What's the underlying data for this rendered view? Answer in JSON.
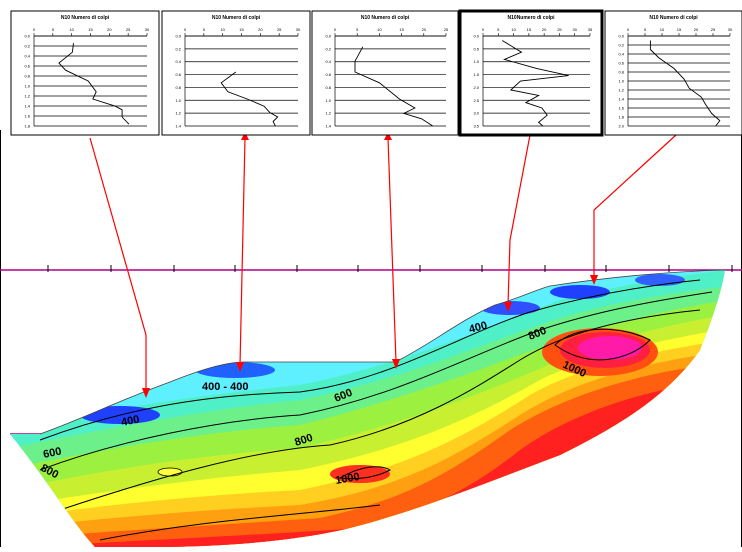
{
  "panels": [
    {
      "title": "N10 Numero di colpi",
      "x_ticks": [
        "0",
        "5",
        "10",
        "15",
        "20",
        "25",
        "30"
      ],
      "y_ticks": [
        "0.0",
        "0.2",
        "0.4",
        "0.6",
        "0.8",
        "1.0",
        "1.2",
        "1.4",
        "1.6",
        "1.8"
      ],
      "highlighted": false
    },
    {
      "title": "N10 Numero di colpi",
      "x_ticks": [
        "0",
        "5",
        "10",
        "15",
        "20",
        "25",
        "30"
      ],
      "y_ticks": [
        "0.0",
        "0.2",
        "0.4",
        "0.6",
        "0.8",
        "1.0",
        "1.2",
        "1.4"
      ],
      "highlighted": false
    },
    {
      "title": "N10 Numero di colpi",
      "x_ticks": [
        "0",
        "5",
        "10",
        "15",
        "20",
        "25"
      ],
      "y_ticks": [
        "0.0",
        "0.2",
        "0.4",
        "0.6",
        "0.8",
        "1.0",
        "1.2",
        "1.4"
      ],
      "highlighted": false
    },
    {
      "title": "N10Numero di colpi",
      "x_ticks": [
        "0",
        "5",
        "10",
        "15",
        "20",
        "25",
        "30",
        "35"
      ],
      "y_ticks": [
        "0.0",
        "0.5",
        "1.0",
        "1.5",
        "2.0",
        "2.5",
        "3.0",
        "3.5"
      ],
      "highlighted": true
    },
    {
      "title": "N10 Numero di colpi",
      "x_ticks": [
        "0",
        "5",
        "10",
        "15",
        "20",
        "25",
        "30"
      ],
      "y_ticks": [
        "0.0",
        "0.2",
        "0.4",
        "0.6",
        "0.8",
        "1.0",
        "1.2",
        "1.4",
        "1.6",
        "1.8",
        "2.0"
      ],
      "highlighted": false
    }
  ],
  "contour_labels": [
    "400",
    "400 - 400",
    "400",
    "800",
    "1000",
    "600",
    "600",
    "800",
    "800",
    "1000"
  ],
  "colors": {
    "arrow": "#ff0000",
    "surface_line": "#b0008a",
    "low": "#1e3cff",
    "high": "#ff1aa8"
  }
}
